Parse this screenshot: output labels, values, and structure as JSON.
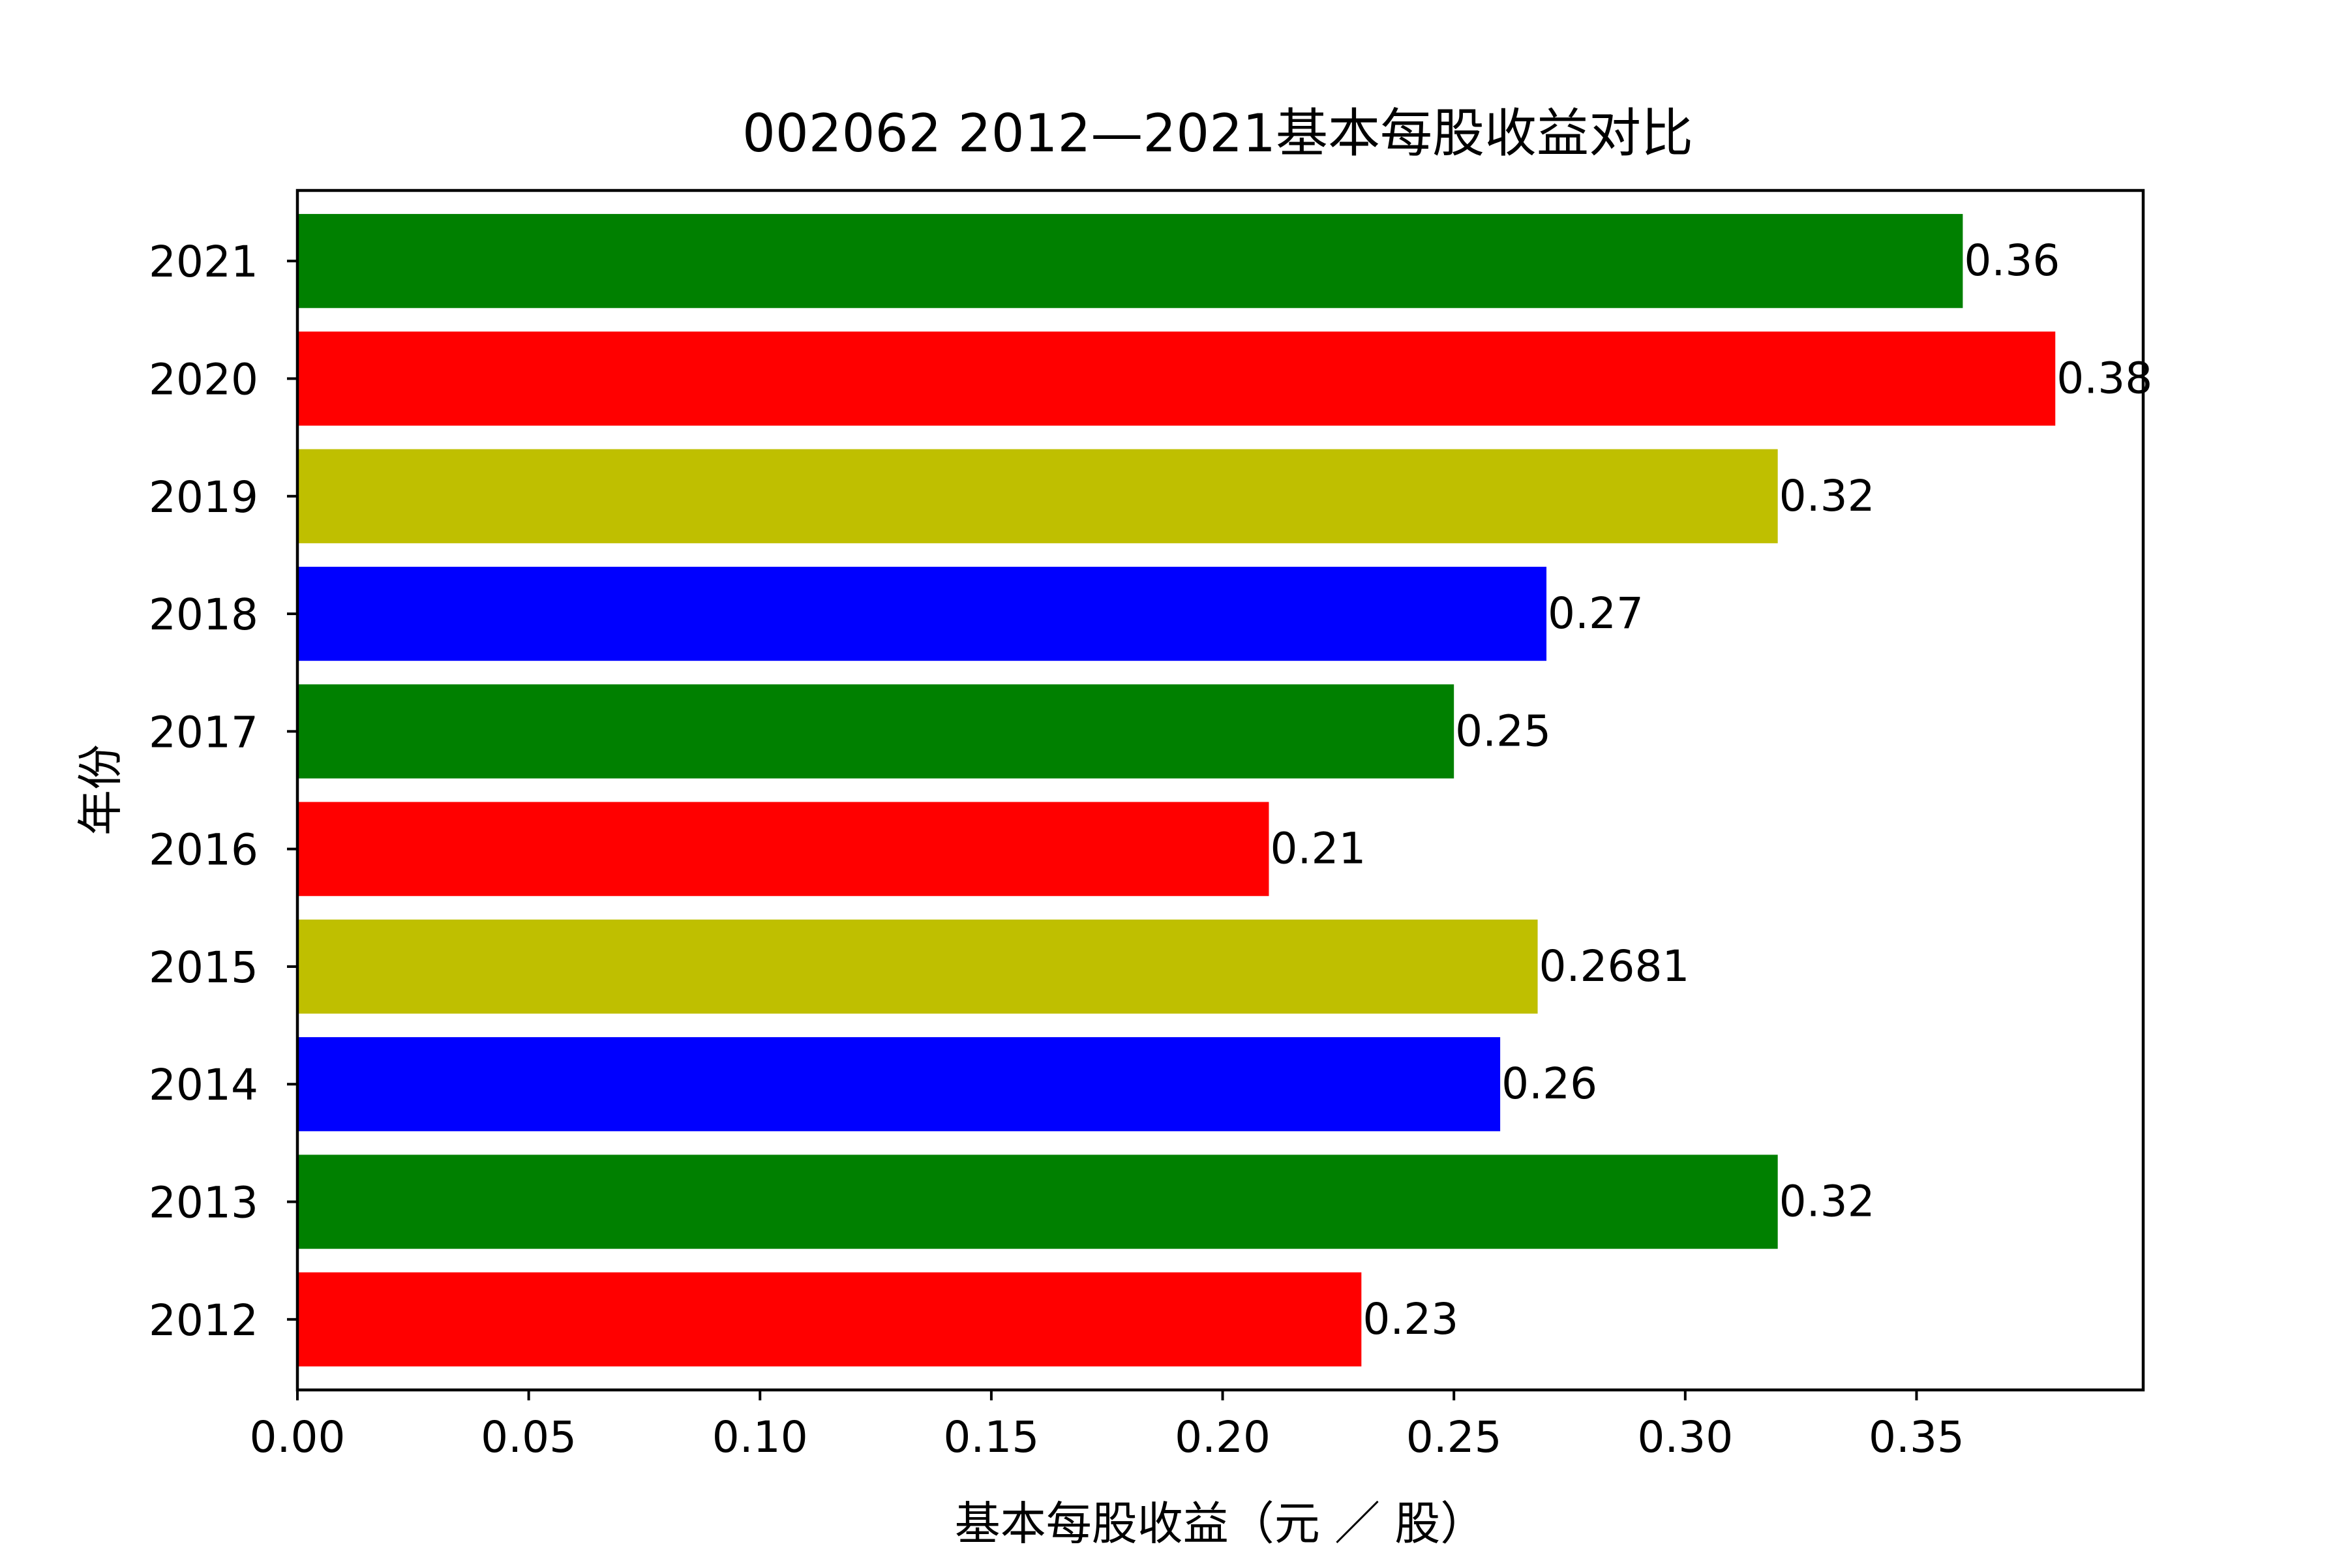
{
  "chart_data": {
    "type": "bar",
    "orientation": "horizontal",
    "title": "002062 2012—2021基本每股收益对比",
    "xlabel": "基本每股收益（元 ／ 股）",
    "ylabel": "年份",
    "categories": [
      "2012",
      "2013",
      "2014",
      "2015",
      "2016",
      "2017",
      "2018",
      "2019",
      "2020",
      "2021"
    ],
    "values": [
      0.23,
      0.32,
      0.26,
      0.2681,
      0.21,
      0.25,
      0.27,
      0.32,
      0.38,
      0.36
    ],
    "data_labels": [
      "0.23",
      "0.32",
      "0.26",
      "0.2681",
      "0.21",
      "0.25",
      "0.27",
      "0.32",
      "0.38",
      "0.36"
    ],
    "bar_colors": [
      "#ff0000",
      "#008000",
      "#0000ff",
      "#bfbf00",
      "#ff0000",
      "#008000",
      "#0000ff",
      "#bfbf00",
      "#ff0000",
      "#008000"
    ],
    "xlim": [
      0,
      0.399
    ],
    "xticks": [
      0.0,
      0.05,
      0.1,
      0.15,
      0.2,
      0.25,
      0.3,
      0.35
    ],
    "xtick_labels": [
      "0.00",
      "0.05",
      "0.10",
      "0.15",
      "0.20",
      "0.25",
      "0.30",
      "0.35"
    ],
    "grid": false,
    "legend": "none"
  }
}
